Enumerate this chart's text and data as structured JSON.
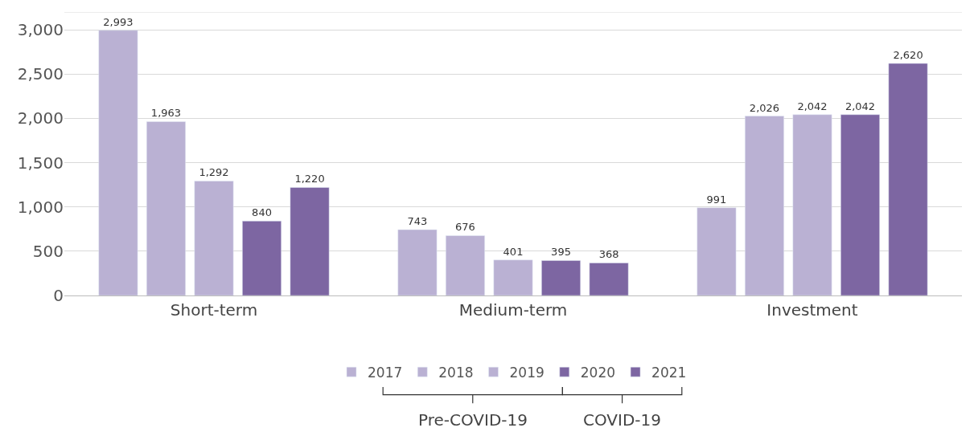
{
  "chart_data": {
    "type": "bar",
    "categories": [
      "Short-term",
      "Medium-term",
      "Investment"
    ],
    "series": [
      {
        "name": "2017",
        "color": "#bab1d3",
        "values": [
          2993,
          743,
          991
        ],
        "value_labels": [
          "2,993",
          "743",
          "991"
        ]
      },
      {
        "name": "2018",
        "color": "#bab1d3",
        "values": [
          1963,
          676,
          2026
        ],
        "value_labels": [
          "1,963",
          "676",
          "2,026"
        ]
      },
      {
        "name": "2019",
        "color": "#bab1d3",
        "values": [
          1292,
          401,
          2042
        ],
        "value_labels": [
          "1,292",
          "401",
          "2,042"
        ]
      },
      {
        "name": "2020",
        "color": "#7d66a2",
        "values": [
          840,
          395,
          2042
        ],
        "value_labels": [
          "840",
          "395",
          "2,042"
        ]
      },
      {
        "name": "2021",
        "color": "#7d66a2",
        "values": [
          1220,
          368,
          2620
        ],
        "value_labels": [
          "1,220",
          "368",
          "2,620"
        ]
      }
    ],
    "ylim": [
      0,
      3200
    ],
    "yticks": [
      0,
      {
        "value": 500,
        "label": "500"
      },
      {
        "value": 1000,
        "label": "1,000"
      },
      {
        "value": 1500,
        "label": "1,500"
      },
      {
        "value": 2000,
        "label": "2,000"
      },
      {
        "value": 2500,
        "label": "2,500"
      },
      {
        "value": 3000,
        "label": "3,000"
      }
    ],
    "grid": "y",
    "legend": "bottom",
    "annotations": [
      "Pre-COVID-19",
      "COVID-19"
    ]
  }
}
